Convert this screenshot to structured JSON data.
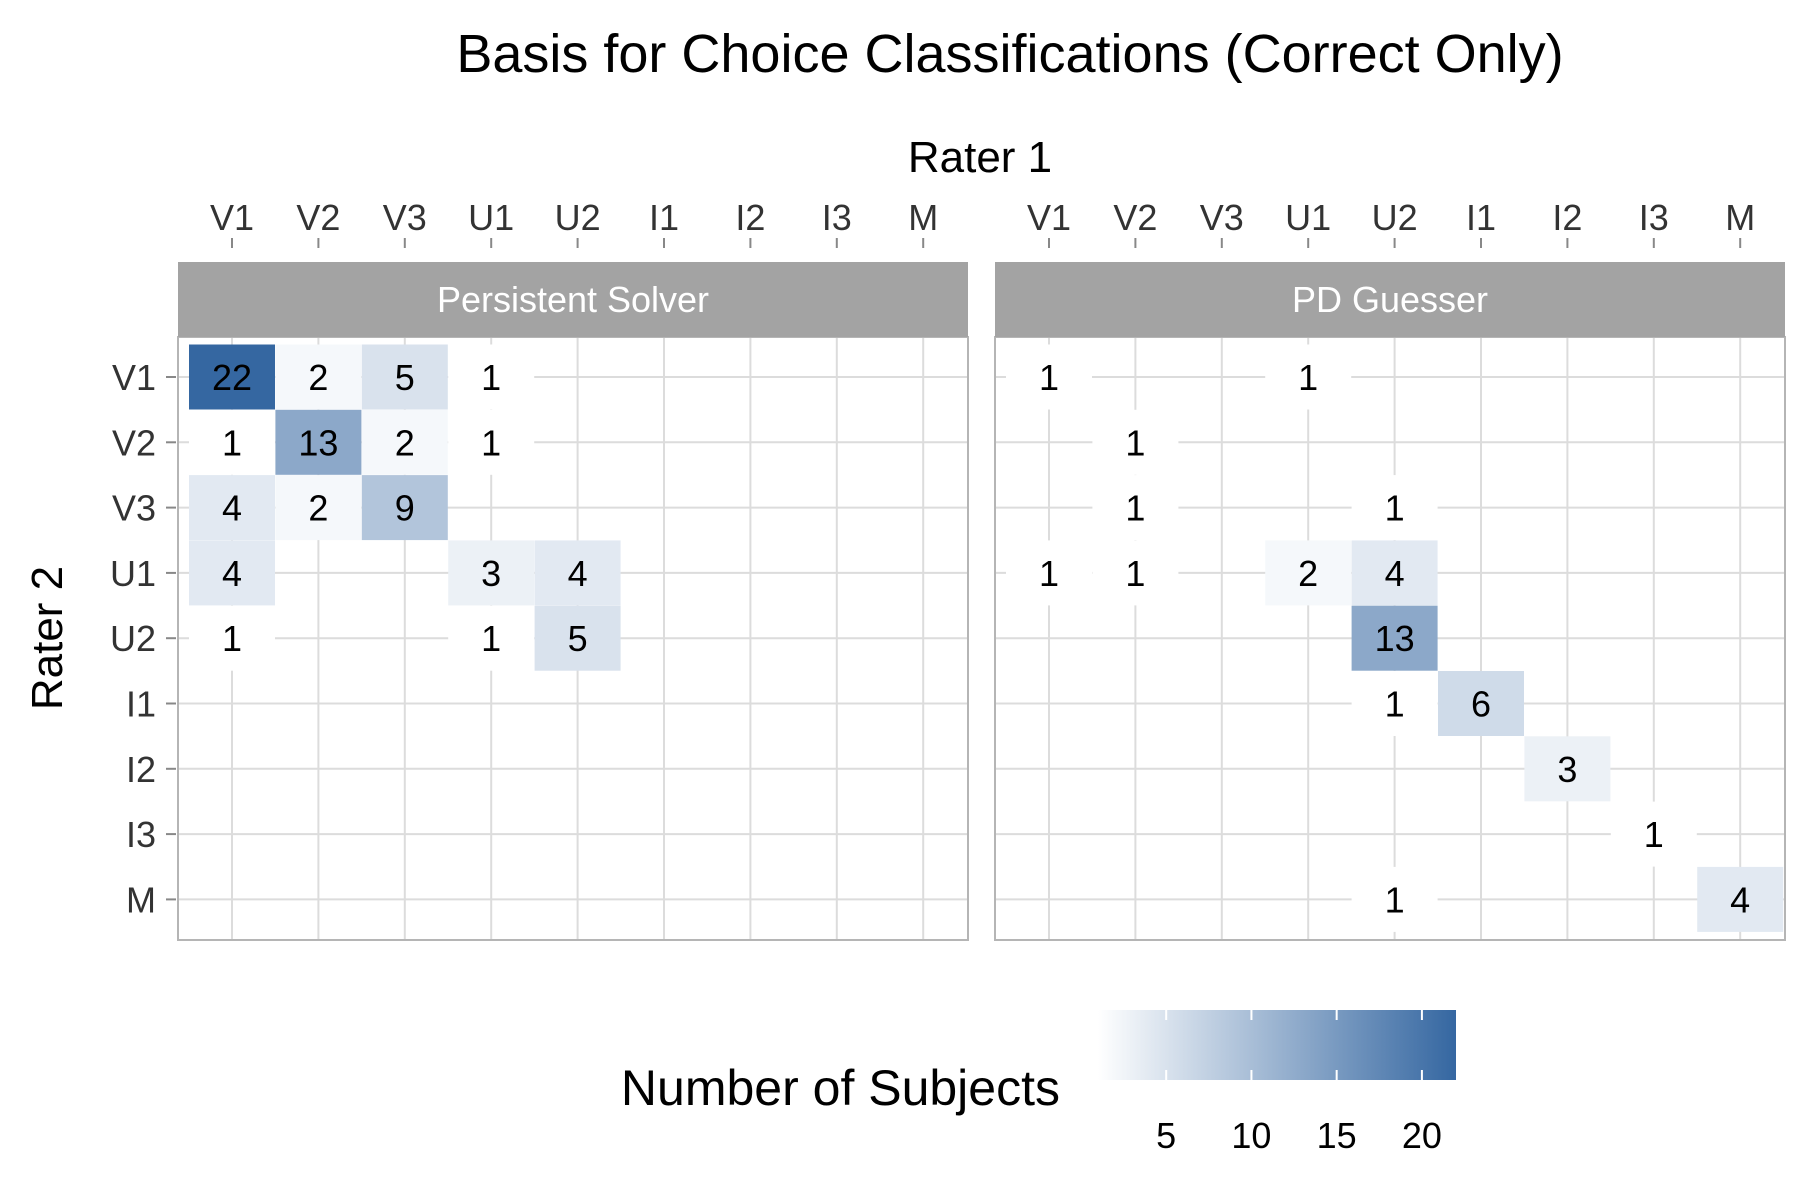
{
  "chart_data": {
    "type": "heatmap",
    "title": "Basis for Choice Classifications (Correct Only)",
    "xlabel": "Rater 1",
    "ylabel": "Rater 2",
    "x_categories": [
      "V1",
      "V2",
      "V3",
      "U1",
      "U2",
      "I1",
      "I2",
      "I3",
      "M"
    ],
    "y_categories": [
      "V1",
      "V2",
      "V3",
      "U1",
      "U2",
      "I1",
      "I2",
      "I3",
      "M"
    ],
    "x_axis_position": "top",
    "grid": true,
    "legend": {
      "title": "Number of Subjects",
      "placement": "bottom",
      "breaks": [
        5,
        10,
        15,
        20
      ],
      "range": [
        1,
        22
      ],
      "low_color": "#ffffff",
      "high_color": "#3567a1"
    },
    "panels": [
      {
        "name": "Persistent Solver",
        "cells": [
          {
            "x": "V1",
            "y": "V1",
            "value": 22
          },
          {
            "x": "V2",
            "y": "V1",
            "value": 2
          },
          {
            "x": "V3",
            "y": "V1",
            "value": 5
          },
          {
            "x": "U1",
            "y": "V1",
            "value": 1
          },
          {
            "x": "V1",
            "y": "V2",
            "value": 1
          },
          {
            "x": "V2",
            "y": "V2",
            "value": 13
          },
          {
            "x": "V3",
            "y": "V2",
            "value": 2
          },
          {
            "x": "U1",
            "y": "V2",
            "value": 1
          },
          {
            "x": "V1",
            "y": "V3",
            "value": 4
          },
          {
            "x": "V2",
            "y": "V3",
            "value": 2
          },
          {
            "x": "V3",
            "y": "V3",
            "value": 9
          },
          {
            "x": "V1",
            "y": "U1",
            "value": 4
          },
          {
            "x": "U1",
            "y": "U1",
            "value": 3
          },
          {
            "x": "U2",
            "y": "U1",
            "value": 4
          },
          {
            "x": "V1",
            "y": "U2",
            "value": 1
          },
          {
            "x": "U1",
            "y": "U2",
            "value": 1
          },
          {
            "x": "U2",
            "y": "U2",
            "value": 5
          }
        ]
      },
      {
        "name": "PD Guesser",
        "cells": [
          {
            "x": "V1",
            "y": "V1",
            "value": 1
          },
          {
            "x": "U1",
            "y": "V1",
            "value": 1
          },
          {
            "x": "V2",
            "y": "V2",
            "value": 1
          },
          {
            "x": "V2",
            "y": "V3",
            "value": 1
          },
          {
            "x": "U2",
            "y": "V3",
            "value": 1
          },
          {
            "x": "V1",
            "y": "U1",
            "value": 1
          },
          {
            "x": "V2",
            "y": "U1",
            "value": 1
          },
          {
            "x": "U1",
            "y": "U1",
            "value": 2
          },
          {
            "x": "U2",
            "y": "U1",
            "value": 4
          },
          {
            "x": "U2",
            "y": "U2",
            "value": 13
          },
          {
            "x": "U2",
            "y": "I1",
            "value": 1
          },
          {
            "x": "I1",
            "y": "I1",
            "value": 6
          },
          {
            "x": "I2",
            "y": "I2",
            "value": 3
          },
          {
            "x": "I3",
            "y": "I3",
            "value": 1
          },
          {
            "x": "U2",
            "y": "M",
            "value": 1
          },
          {
            "x": "M",
            "y": "M",
            "value": 4
          }
        ]
      }
    ]
  }
}
